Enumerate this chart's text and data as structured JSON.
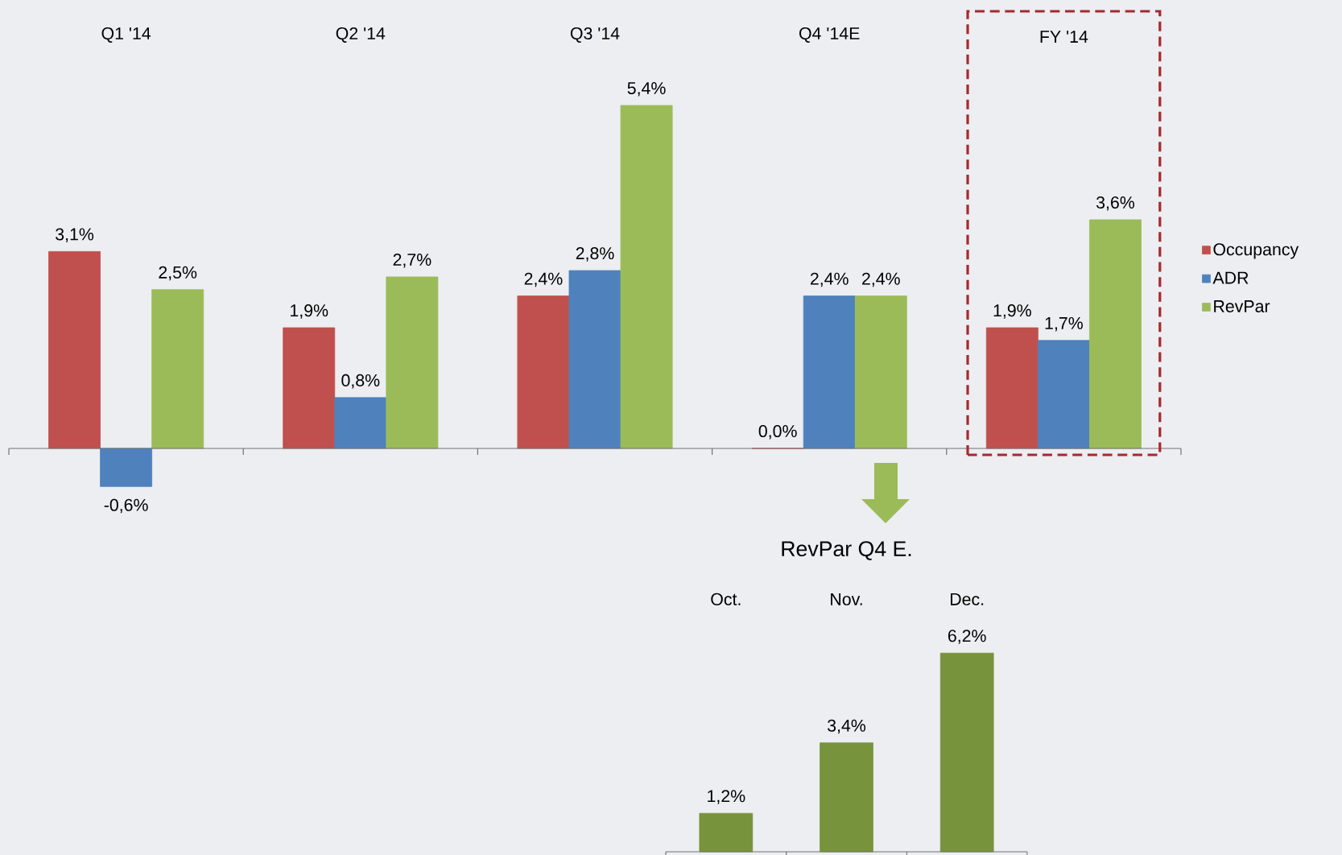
{
  "chart_data": [
    {
      "type": "bar",
      "categories": [
        "Q1 '14",
        "Q2 '14",
        "Q3 '14",
        "Q4 '14E",
        "FY '14"
      ],
      "series": [
        {
          "name": "Occupancy",
          "color": "#c0504d",
          "values": [
            3.1,
            1.9,
            2.4,
            0.0,
            1.9
          ],
          "value_labels": [
            "3,1%",
            "1,9%",
            "2,4%",
            "0,0%",
            "1,9%"
          ]
        },
        {
          "name": "ADR",
          "color": "#4f81bd",
          "values": [
            -0.6,
            0.8,
            2.8,
            2.4,
            1.7
          ],
          "value_labels": [
            "-0,6%",
            "0,8%",
            "2,8%",
            "2,4%",
            "1,7%"
          ]
        },
        {
          "name": "RevPar",
          "color": "#9bbb59",
          "values": [
            2.5,
            2.7,
            5.4,
            2.4,
            3.6
          ],
          "value_labels": [
            "2,5%",
            "2,7%",
            "5,4%",
            "2,4%",
            "3,6%"
          ]
        }
      ],
      "legend": "right"
    },
    {
      "type": "bar",
      "title": "RevPar Q4 E.",
      "categories": [
        "Oct.",
        "Nov.",
        "Dec."
      ],
      "values": [
        1.2,
        3.4,
        6.2
      ],
      "value_labels": [
        "1,2%",
        "3,4%",
        "6,2%"
      ],
      "color": "#77933c"
    }
  ]
}
